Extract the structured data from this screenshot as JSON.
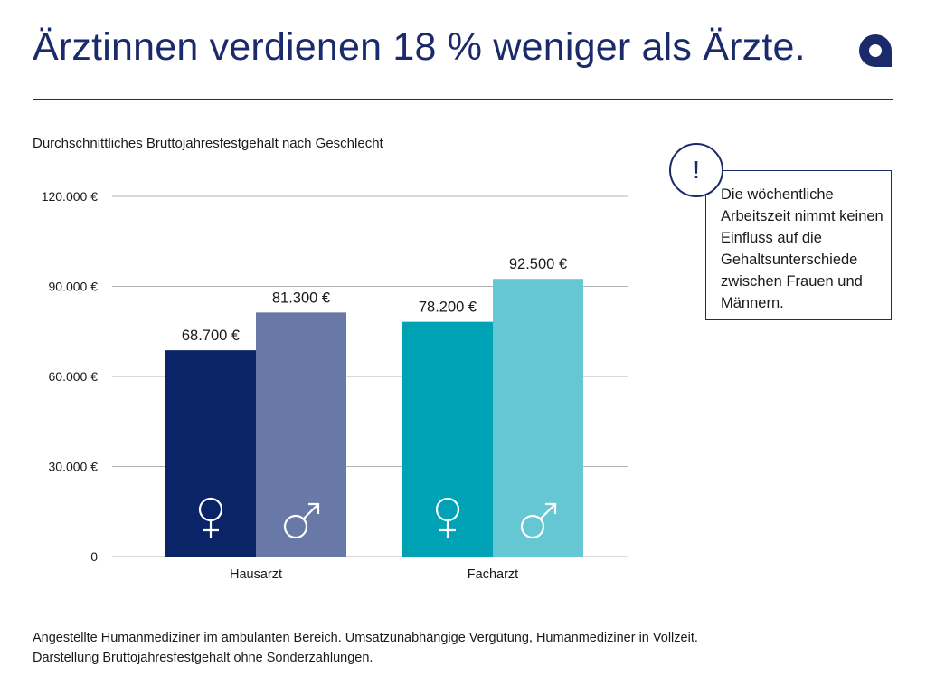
{
  "header": {
    "title": "Ärztinnen verdienen 18 % weniger als Ärzte.",
    "logo_icon": "brand-logo-a"
  },
  "chart_data": {
    "type": "bar",
    "title": "",
    "subtitle": "Durchschnittliches Bruttojahresfestgehalt nach Geschlecht",
    "xlabel": "",
    "ylabel": "",
    "ylim": [
      0,
      120000
    ],
    "yticks": [
      0,
      30000,
      60000,
      90000,
      120000
    ],
    "ytick_labels": [
      "0",
      "30.000 €",
      "60.000 €",
      "90.000 €",
      "120.000 €"
    ],
    "grid": true,
    "legend": "none",
    "categories": [
      "Hausarzt",
      "Facharzt"
    ],
    "series": [
      {
        "gender_icon": "female-symbol-icon",
        "values": [
          68700,
          78200
        ],
        "value_labels": [
          "68.700 €",
          "78.200 €"
        ],
        "colors": [
          "#0b2468",
          "#00a3b5"
        ]
      },
      {
        "gender_icon": "male-symbol-icon",
        "values": [
          81300,
          92500
        ],
        "value_labels": [
          "81.300 €",
          "92.500 €"
        ],
        "colors": [
          "#6879a8",
          "#66c7d4"
        ]
      }
    ]
  },
  "note": {
    "icon": "exclamation-icon",
    "symbol": "!",
    "text": "Die wöchentliche Arbeitszeit nimmt keinen Einfluss auf die Gehaltsunterschiede zwischen Frauen und Männern."
  },
  "footnote": {
    "line1": "Angestellte Humanmediziner im ambulanten Bereich. Umsatzunabhängige Vergütung, Humanmediziner in Vollzeit.",
    "line2": "Darstellung Bruttojahresfestgehalt ohne Sonderzahlungen."
  },
  "colors": {
    "brand": "#1b2a6b",
    "grid": "#b4b4b4",
    "icon_on_bar": "#ffffff"
  }
}
